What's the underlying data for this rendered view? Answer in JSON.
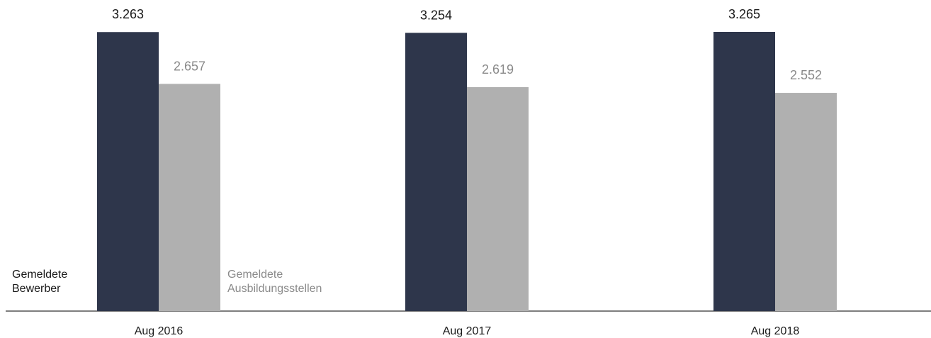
{
  "chart_data": {
    "type": "bar",
    "categories": [
      "Aug 2016",
      "Aug 2017",
      "Aug 2018"
    ],
    "series": [
      {
        "name": "Gemeldete Bewerber",
        "name_lines": [
          "Gemeldete",
          "Bewerber"
        ],
        "values": [
          3263,
          3254,
          3265
        ],
        "value_labels": [
          "3.263",
          "3.254",
          "3.265"
        ],
        "color": "#2e364b",
        "label_color": "#1a1a1a"
      },
      {
        "name": "Gemeldete Ausbildungsstellen",
        "name_lines": [
          "Gemeldete",
          "Ausbildungsstellen"
        ],
        "values": [
          2657,
          2619,
          2552
        ],
        "value_labels": [
          "2.657",
          "2.619",
          "2.552"
        ],
        "color": "#b0b0b0",
        "label_color": "#8a8a8a"
      }
    ],
    "title": "",
    "xlabel": "",
    "ylabel": "",
    "ylim": [
      0,
      3265
    ],
    "grid": false,
    "legend_placement": "inline-bottom-left"
  }
}
